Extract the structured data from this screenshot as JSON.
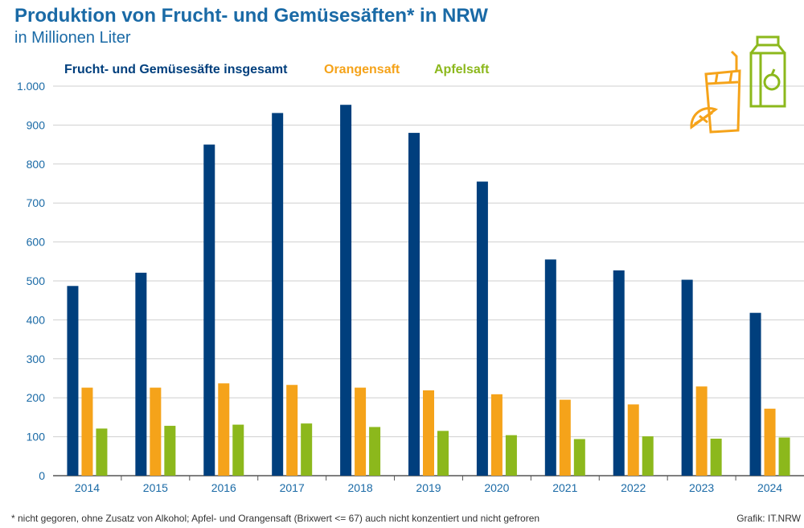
{
  "header": {
    "title": "Produktion von Frucht- und Gemüsesäften* in NRW",
    "subtitle": "in Millionen Liter"
  },
  "footer": {
    "footnote": "*  nicht gegoren, ohne Zusatz von Alkohol; Apfel- und Orangensaft (Brixwert <= 67) auch nicht konzentiert und nicht gefroren",
    "credit": "Grafik: IT.NRW"
  },
  "decoration": {
    "icon": "juice-carton-and-orange-icon"
  },
  "colors": {
    "total": "#003f7d",
    "orange": "#f5a31a",
    "apple": "#8cb81c",
    "text": "#1a6aa6"
  },
  "chart_data": {
    "type": "bar",
    "title": "Produktion von Frucht- und Gemüsesäften* in NRW",
    "subtitle": "in Millionen Liter",
    "categories": [
      "2014",
      "2015",
      "2016",
      "2017",
      "2018",
      "2019",
      "2020",
      "2021",
      "2022",
      "2023",
      "2024"
    ],
    "series": [
      {
        "name": "Frucht- und Gemüsesäfte insgesamt",
        "color": "#003f7d",
        "values": [
          487,
          521,
          850,
          931,
          952,
          880,
          755,
          555,
          527,
          503,
          418
        ]
      },
      {
        "name": "Orangensaft",
        "color": "#f5a31a",
        "values": [
          226,
          226,
          237,
          233,
          226,
          219,
          209,
          195,
          183,
          229,
          172
        ]
      },
      {
        "name": "Apfelsaft",
        "color": "#8cb81c",
        "values": [
          121,
          128,
          131,
          134,
          125,
          115,
          104,
          94,
          101,
          95,
          98
        ]
      }
    ],
    "ylim": [
      0,
      1000
    ],
    "yticks": [
      0,
      100,
      200,
      300,
      400,
      500,
      600,
      700,
      800,
      900,
      1000
    ],
    "ytick_labels": [
      "0",
      "100",
      "200",
      "300",
      "400",
      "500",
      "600",
      "700",
      "800",
      "900",
      "1.000"
    ],
    "grid": true,
    "legend": "top-left"
  }
}
